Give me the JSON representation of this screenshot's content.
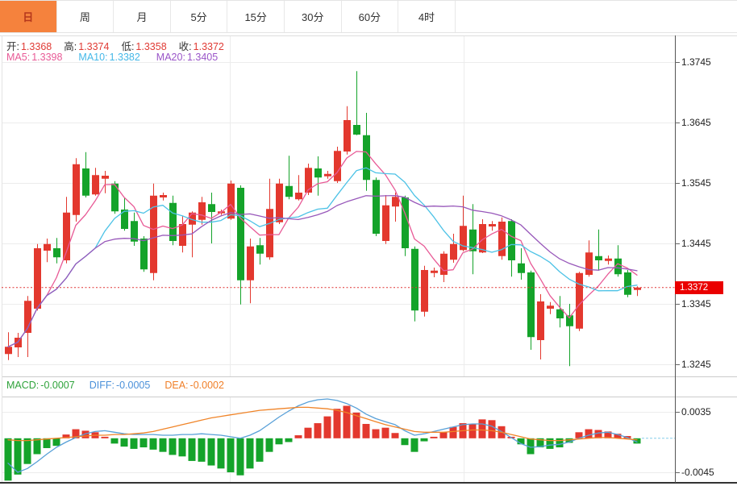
{
  "tabs": {
    "items": [
      {
        "id": "day",
        "label": "日",
        "active": true
      },
      {
        "id": "week",
        "label": "周",
        "active": false
      },
      {
        "id": "month",
        "label": "月",
        "active": false
      },
      {
        "id": "5min",
        "label": "5分",
        "active": false
      },
      {
        "id": "15min",
        "label": "15分",
        "active": false
      },
      {
        "id": "30min",
        "label": "30分",
        "active": false
      },
      {
        "id": "60min",
        "label": "60分",
        "active": false
      },
      {
        "id": "4hour",
        "label": "4时",
        "active": false
      }
    ],
    "active_bg": "#f5823d",
    "active_text": "#b5371c"
  },
  "quote_bar": {
    "items": [
      {
        "label": "开:",
        "value": "1.3368"
      },
      {
        "label": "高:",
        "value": "1.3374"
      },
      {
        "label": "低:",
        "value": "1.3358"
      },
      {
        "label": "收:",
        "value": "1.3372"
      }
    ],
    "value_color": "#e03a34"
  },
  "ma_bar": {
    "items": [
      {
        "label": "MA5:",
        "value": "1.3398",
        "color": "#e85a96"
      },
      {
        "label": "MA10:",
        "value": "1.3382",
        "color": "#45b8e8"
      },
      {
        "label": "MA20:",
        "value": "1.3405",
        "color": "#9a55c8"
      }
    ]
  },
  "macd_bar": {
    "items": [
      {
        "label": "MACD:",
        "value": "-0.0007",
        "color": "#2fa33b"
      },
      {
        "label": "DIFF:",
        "value": "-0.0005",
        "color": "#4a90d9"
      },
      {
        "label": "DEA:",
        "value": "-0.0002",
        "color": "#f07f28"
      }
    ]
  },
  "price_tag": {
    "value": "1.3372",
    "color": "#ea0000"
  },
  "chart_data": {
    "type": "candlestick",
    "title": "",
    "up_color": "#e3382e",
    "down_color": "#14a32a",
    "ma5_color": "#e85a96",
    "ma10_color": "#4cc2e6",
    "ma20_color": "#9858ba",
    "diff_color": "#58a0d8",
    "dea_color": "#f08428",
    "grid_color": "#ececec",
    "price_axis": {
      "ticks": [
        1.3745,
        1.3645,
        1.3545,
        1.3445,
        1.3345,
        1.3245
      ],
      "last_price": 1.3372
    },
    "macd_axis": {
      "ticks": [
        0.0035,
        -0.0045
      ]
    },
    "last_values": {
      "open": 1.3368,
      "high": 1.3374,
      "low": 1.3358,
      "close": 1.3372,
      "macd": -0.0007,
      "diff": -0.0005,
      "dea": -0.0002
    },
    "candles": [
      [
        1.3262,
        1.3298,
        1.3252,
        1.3274
      ],
      [
        1.3273,
        1.3297,
        1.3257,
        1.3289
      ],
      [
        1.3297,
        1.3358,
        1.3257,
        1.335
      ],
      [
        1.3337,
        1.3444,
        1.3334,
        1.3437
      ],
      [
        1.3433,
        1.3453,
        1.3414,
        1.3444
      ],
      [
        1.3437,
        1.3454,
        1.3412,
        1.3422
      ],
      [
        1.3417,
        1.3522,
        1.3412,
        1.3496
      ],
      [
        1.3492,
        1.3586,
        1.3481,
        1.3576
      ],
      [
        1.3569,
        1.3596,
        1.3521,
        1.3524
      ],
      [
        1.3526,
        1.357,
        1.3524,
        1.3558
      ],
      [
        1.3552,
        1.3565,
        1.3528,
        1.3557
      ],
      [
        1.3544,
        1.3548,
        1.3494,
        1.3498
      ],
      [
        1.3501,
        1.3521,
        1.3466,
        1.3469
      ],
      [
        1.3482,
        1.3496,
        1.3441,
        1.3448
      ],
      [
        1.3453,
        1.3457,
        1.3398,
        1.3402
      ],
      [
        1.3396,
        1.3544,
        1.3384,
        1.3524
      ],
      [
        1.3521,
        1.3529,
        1.3516,
        1.3525
      ],
      [
        1.3512,
        1.3524,
        1.3442,
        1.3449
      ],
      [
        1.3441,
        1.349,
        1.343,
        1.3477
      ],
      [
        1.3476,
        1.3498,
        1.3422,
        1.3496
      ],
      [
        1.3484,
        1.3522,
        1.3476,
        1.3513
      ],
      [
        1.351,
        1.3529,
        1.3445,
        1.3497
      ],
      [
        1.3496,
        1.3501,
        1.3492,
        1.3498
      ],
      [
        1.3486,
        1.3549,
        1.3484,
        1.3544
      ],
      [
        1.3537,
        1.3541,
        1.3344,
        1.3384
      ],
      [
        1.3384,
        1.3453,
        1.3346,
        1.344
      ],
      [
        1.3442,
        1.3454,
        1.341,
        1.3428
      ],
      [
        1.3422,
        1.3552,
        1.3418,
        1.3502
      ],
      [
        1.348,
        1.3552,
        1.3477,
        1.3544
      ],
      [
        1.354,
        1.359,
        1.3518,
        1.3522
      ],
      [
        1.3518,
        1.3558,
        1.3516,
        1.3529
      ],
      [
        1.3529,
        1.3577,
        1.3525,
        1.357
      ],
      [
        1.3569,
        1.3589,
        1.3524,
        1.3554
      ],
      [
        1.3556,
        1.3565,
        1.3552,
        1.356
      ],
      [
        1.3548,
        1.3605,
        1.3545,
        1.3598
      ],
      [
        1.3597,
        1.3672,
        1.3592,
        1.3649
      ],
      [
        1.3641,
        1.373,
        1.3624,
        1.3625
      ],
      [
        1.3624,
        1.3661,
        1.3532,
        1.355
      ],
      [
        1.355,
        1.3554,
        1.3457,
        1.3461
      ],
      [
        1.3449,
        1.3525,
        1.3444,
        1.3508
      ],
      [
        1.3506,
        1.3529,
        1.3481,
        1.3522
      ],
      [
        1.3521,
        1.3524,
        1.3424,
        1.3437
      ],
      [
        1.3436,
        1.344,
        1.3316,
        1.3334
      ],
      [
        1.3332,
        1.3408,
        1.3324,
        1.3401
      ],
      [
        1.3396,
        1.3405,
        1.3389,
        1.34
      ],
      [
        1.3393,
        1.3432,
        1.3381,
        1.3428
      ],
      [
        1.3418,
        1.3461,
        1.3413,
        1.3444
      ],
      [
        1.3434,
        1.3524,
        1.3432,
        1.3474
      ],
      [
        1.3468,
        1.351,
        1.3394,
        1.3432
      ],
      [
        1.343,
        1.3485,
        1.3429,
        1.3477
      ],
      [
        1.3473,
        1.3482,
        1.3466,
        1.3477
      ],
      [
        1.3424,
        1.3488,
        1.3418,
        1.3481
      ],
      [
        1.3482,
        1.3485,
        1.339,
        1.3417
      ],
      [
        1.3412,
        1.3437,
        1.3385,
        1.3396
      ],
      [
        1.3397,
        1.34,
        1.3269,
        1.329
      ],
      [
        1.3285,
        1.3361,
        1.3253,
        1.3349
      ],
      [
        1.3337,
        1.3348,
        1.3328,
        1.3342
      ],
      [
        1.3336,
        1.3358,
        1.3306,
        1.3321
      ],
      [
        1.3326,
        1.3345,
        1.3242,
        1.3308
      ],
      [
        1.3304,
        1.3398,
        1.33,
        1.3396
      ],
      [
        1.3393,
        1.345,
        1.339,
        1.343
      ],
      [
        1.3424,
        1.3468,
        1.34,
        1.3417
      ],
      [
        1.3416,
        1.3425,
        1.341,
        1.342
      ],
      [
        1.342,
        1.3442,
        1.339,
        1.3394
      ],
      [
        1.3397,
        1.3401,
        1.3356,
        1.336
      ],
      [
        1.3368,
        1.3374,
        1.3358,
        1.3372
      ]
    ],
    "macd_hist": [
      -0.0056,
      -0.0048,
      -0.0034,
      -0.0021,
      -0.0013,
      -0.001,
      0.0005,
      0.0012,
      0.001,
      0.0008,
      0.0002,
      -0.0007,
      -0.0011,
      -0.0014,
      -0.0012,
      -0.0015,
      -0.0018,
      -0.0022,
      -0.0024,
      -0.003,
      -0.0031,
      -0.0036,
      -0.004,
      -0.0045,
      -0.0049,
      -0.004,
      -0.0031,
      -0.0018,
      -0.0008,
      -0.0005,
      0.0004,
      0.0014,
      0.002,
      0.0029,
      0.0039,
      0.0043,
      0.0034,
      0.0019,
      0.0012,
      0.0014,
      0.0007,
      -0.0009,
      -0.0018,
      -0.0004,
      0.0002,
      0.0008,
      0.0015,
      0.002,
      0.0019,
      0.0025,
      0.0024,
      0.0016,
      0.0002,
      -0.0008,
      -0.0021,
      -0.0012,
      -0.0014,
      -0.0012,
      -0.0006,
      0.0008,
      0.0012,
      0.0011,
      0.0009,
      0.0006,
      0.0003,
      -0.0007
    ],
    "diff": [
      -0.0033,
      -0.0045,
      -0.004,
      -0.0031,
      -0.0021,
      -0.0012,
      -0.0005,
      0.0001,
      0.0006,
      0.0009,
      0.001,
      0.0008,
      0.0006,
      0.0005,
      0.0005,
      0.0005,
      0.0004,
      0.0004,
      0.0005,
      0.0005,
      0.0006,
      0.0005,
      0.0004,
      0.0002,
      0.0,
      0.0004,
      0.001,
      0.0019,
      0.0028,
      0.0036,
      0.0043,
      0.0048,
      0.0051,
      0.0052,
      0.005,
      0.0046,
      0.004,
      0.0032,
      0.0026,
      0.0022,
      0.0018,
      0.001,
      0.0004,
      0.0006,
      0.0009,
      0.0012,
      0.0015,
      0.0018,
      0.0019,
      0.0019,
      0.0016,
      0.0009,
      0.0001,
      -0.0007,
      -0.0012,
      -0.0011,
      -0.0009,
      -0.0008,
      -0.0005,
      0.0,
      0.0004,
      0.0007,
      0.0008,
      0.0005,
      0.0001,
      -0.0005
    ],
    "dea": [
      -0.0002,
      -0.0003,
      -0.0003,
      -0.0002,
      -0.0001,
      0.0,
      0.0001,
      0.0002,
      0.0003,
      0.0004,
      0.0004,
      0.0005,
      0.0005,
      0.0006,
      0.0007,
      0.0009,
      0.0012,
      0.0015,
      0.0018,
      0.0021,
      0.0024,
      0.0027,
      0.0029,
      0.0031,
      0.0033,
      0.0035,
      0.0037,
      0.0038,
      0.0039,
      0.004,
      0.0041,
      0.0041,
      0.004,
      0.0039,
      0.0037,
      0.0034,
      0.003,
      0.0026,
      0.0022,
      0.0018,
      0.0015,
      0.0012,
      0.0009,
      0.0008,
      0.0008,
      0.0008,
      0.0009,
      0.001,
      0.0011,
      0.0011,
      0.001,
      0.0008,
      0.0005,
      0.0002,
      -0.0001,
      -0.0002,
      -0.0003,
      -0.0003,
      -0.0002,
      -0.0001,
      0.0,
      0.0001,
      0.0001,
      0.0,
      -0.0001,
      -0.0002
    ]
  }
}
